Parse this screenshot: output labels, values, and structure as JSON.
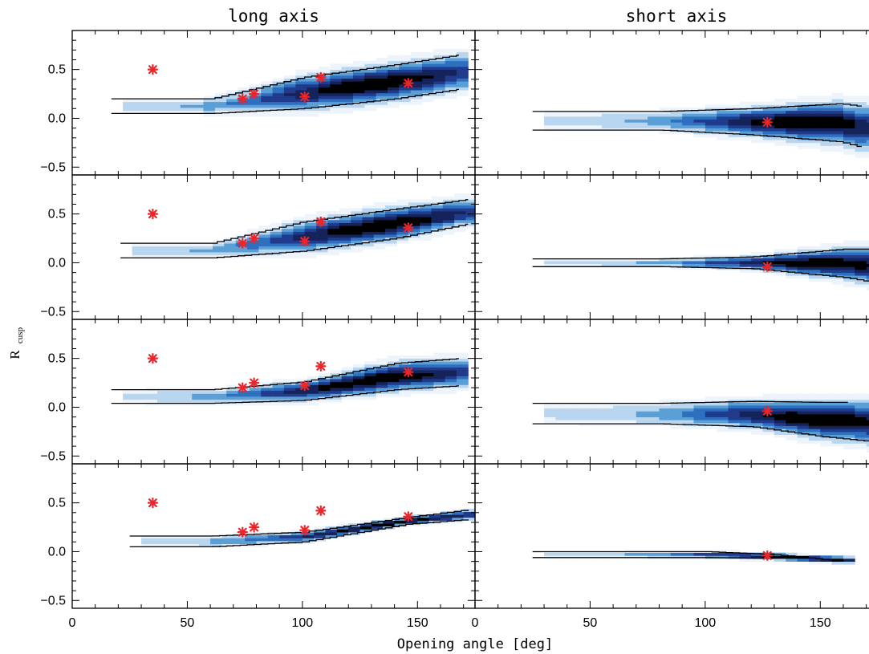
{
  "chart_data": {
    "type": "heatmap",
    "column_titles": [
      "long axis",
      "short axis"
    ],
    "xlabel": "Opening angle [deg]",
    "ylabel": "R",
    "ylabel_subscript": "cusp",
    "xlim": [
      0,
      175
    ],
    "ylim": [
      -0.58,
      0.9
    ],
    "x_ticks": [
      0,
      50,
      100,
      150
    ],
    "x_tick_labels": [
      "0",
      "50",
      "100",
      "150"
    ],
    "y_ticks": [
      -0.5,
      0.0,
      0.5
    ],
    "y_tick_labels": [
      "−0.5",
      "0.0",
      "0.5"
    ],
    "grid": false,
    "colormap": [
      "#eef4fb",
      "#b8d6ef",
      "#5a9fd6",
      "#2f6fbf",
      "#203a8c",
      "#14235a",
      "#000000"
    ],
    "marker_color": "#e8262b",
    "panels": [
      {
        "row": 0,
        "col": 0,
        "observed": {
          "x": [
            35,
            74,
            79,
            101,
            108,
            146
          ],
          "y": [
            0.5,
            0.2,
            0.25,
            0.22,
            0.42,
            0.36
          ]
        },
        "upper_boundary": {
          "x": [
            17,
            60,
            100,
            140,
            168
          ],
          "y": [
            0.2,
            0.2,
            0.42,
            0.55,
            0.65
          ]
        },
        "lower_boundary": {
          "x": [
            17,
            60,
            100,
            140,
            168
          ],
          "y": [
            0.05,
            0.05,
            0.1,
            0.2,
            0.3
          ]
        }
      },
      {
        "row": 0,
        "col": 1,
        "observed": {
          "x": [
            127
          ],
          "y": [
            -0.04
          ]
        },
        "upper_boundary": {
          "x": [
            25,
            80,
            120,
            158,
            168
          ],
          "y": [
            0.07,
            0.07,
            0.1,
            0.15,
            0.12
          ]
        },
        "lower_boundary": {
          "x": [
            25,
            80,
            120,
            158,
            168
          ],
          "y": [
            -0.12,
            -0.12,
            -0.17,
            -0.24,
            -0.3
          ]
        }
      },
      {
        "row": 1,
        "col": 0,
        "observed": {
          "x": [
            35,
            74,
            79,
            101,
            108,
            146
          ],
          "y": [
            0.5,
            0.2,
            0.25,
            0.22,
            0.42,
            0.36
          ]
        },
        "upper_boundary": {
          "x": [
            21,
            60,
            100,
            140,
            172
          ],
          "y": [
            0.2,
            0.2,
            0.42,
            0.55,
            0.65
          ]
        },
        "lower_boundary": {
          "x": [
            21,
            60,
            100,
            140,
            172
          ],
          "y": [
            0.05,
            0.05,
            0.12,
            0.25,
            0.4
          ]
        }
      },
      {
        "row": 1,
        "col": 1,
        "observed": {
          "x": [
            127
          ],
          "y": [
            -0.04
          ]
        },
        "upper_boundary": {
          "x": [
            25,
            80,
            120,
            160,
            175
          ],
          "y": [
            0.04,
            0.04,
            0.06,
            0.14,
            0.14
          ]
        },
        "lower_boundary": {
          "x": [
            25,
            80,
            120,
            160,
            175
          ],
          "y": [
            -0.04,
            -0.04,
            -0.06,
            -0.15,
            -0.21
          ]
        }
      },
      {
        "row": 2,
        "col": 0,
        "observed": {
          "x": [
            35,
            74,
            79,
            101,
            108,
            146
          ],
          "y": [
            0.5,
            0.2,
            0.25,
            0.22,
            0.42,
            0.36
          ]
        },
        "upper_boundary": {
          "x": [
            17,
            60,
            100,
            140,
            168
          ],
          "y": [
            0.18,
            0.18,
            0.26,
            0.45,
            0.5
          ]
        },
        "lower_boundary": {
          "x": [
            17,
            60,
            100,
            140,
            168
          ],
          "y": [
            0.04,
            0.04,
            0.07,
            0.18,
            0.22
          ]
        }
      },
      {
        "row": 2,
        "col": 1,
        "observed": {
          "x": [
            127
          ],
          "y": [
            -0.04
          ]
        },
        "upper_boundary": {
          "x": [
            25,
            80,
            120,
            150,
            162
          ],
          "y": [
            0.04,
            0.04,
            0.06,
            0.05,
            0.05
          ]
        },
        "lower_boundary": {
          "x": [
            25,
            80,
            120,
            150,
            175
          ],
          "y": [
            -0.17,
            -0.17,
            -0.2,
            -0.3,
            -0.36
          ]
        }
      },
      {
        "row": 3,
        "col": 0,
        "observed": {
          "x": [
            35,
            74,
            79,
            101,
            108,
            146
          ],
          "y": [
            0.5,
            0.2,
            0.25,
            0.22,
            0.42,
            0.36
          ]
        },
        "upper_boundary": {
          "x": [
            25,
            60,
            100,
            145,
            172
          ],
          "y": [
            0.16,
            0.16,
            0.2,
            0.35,
            0.43
          ]
        },
        "lower_boundary": {
          "x": [
            25,
            60,
            100,
            145,
            172
          ],
          "y": [
            0.05,
            0.05,
            0.1,
            0.28,
            0.33
          ]
        }
      },
      {
        "row": 3,
        "col": 1,
        "observed": {
          "x": [
            127
          ],
          "y": [
            -0.04
          ]
        },
        "upper_boundary": {
          "x": [
            25,
            100,
            130,
            160
          ],
          "y": [
            0.0,
            0.0,
            -0.03,
            -0.1
          ]
        },
        "lower_boundary": {
          "x": [
            25,
            100,
            130
          ],
          "y": [
            -0.06,
            -0.06,
            -0.07
          ]
        }
      }
    ]
  }
}
